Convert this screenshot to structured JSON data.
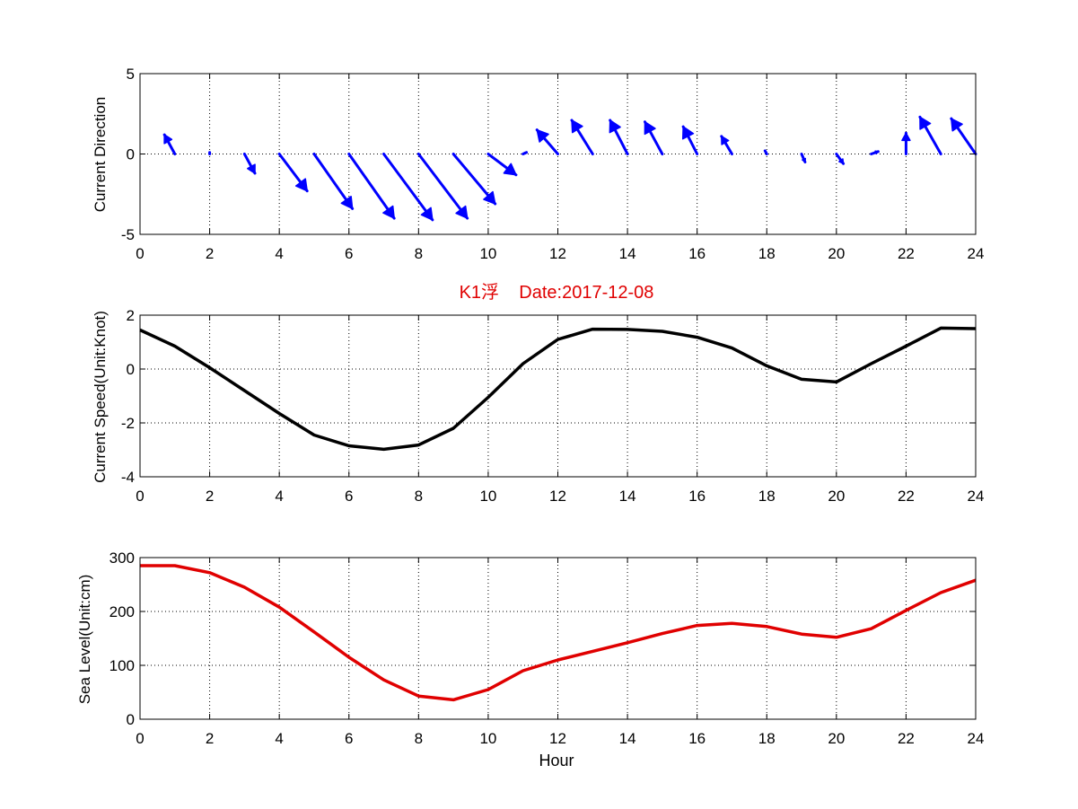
{
  "title": "K1浮    Date:2017-12-08",
  "colors": {
    "direction": "#0000ff",
    "speed": "#000000",
    "sea_level": "#e00000",
    "title": "#e00000"
  },
  "chart_data": [
    {
      "type": "quiver",
      "ylabel": "Current Direction",
      "xlim": [
        0,
        24
      ],
      "ylim": [
        -5,
        5
      ],
      "xticks": [
        "0",
        "2",
        "4",
        "6",
        "8",
        "10",
        "12",
        "14",
        "16",
        "18",
        "20",
        "22",
        "24"
      ],
      "yticks": [
        "-5",
        "0",
        "5"
      ],
      "grid": true,
      "arrows": [
        {
          "x": 1,
          "u": -0.3,
          "v": 1.2
        },
        {
          "x": 2,
          "u": 0.0,
          "v": 0.1
        },
        {
          "x": 3,
          "u": 0.3,
          "v": -1.2
        },
        {
          "x": 4,
          "u": 0.8,
          "v": -2.3
        },
        {
          "x": 5,
          "u": 1.1,
          "v": -3.4
        },
        {
          "x": 6,
          "u": 1.3,
          "v": -4.0
        },
        {
          "x": 7,
          "u": 1.4,
          "v": -4.1
        },
        {
          "x": 8,
          "u": 1.4,
          "v": -4.0
        },
        {
          "x": 9,
          "u": 1.2,
          "v": -3.1
        },
        {
          "x": 10,
          "u": 0.8,
          "v": -1.3
        },
        {
          "x": 11,
          "u": 0.1,
          "v": 0.1
        },
        {
          "x": 12,
          "u": -0.6,
          "v": 1.5
        },
        {
          "x": 13,
          "u": -0.6,
          "v": 2.1
        },
        {
          "x": 14,
          "u": -0.5,
          "v": 2.1
        },
        {
          "x": 15,
          "u": -0.5,
          "v": 2.0
        },
        {
          "x": 16,
          "u": -0.4,
          "v": 1.7
        },
        {
          "x": 17,
          "u": -0.3,
          "v": 1.1
        },
        {
          "x": 18,
          "u": -0.05,
          "v": 0.2
        },
        {
          "x": 19,
          "u": 0.1,
          "v": -0.5
        },
        {
          "x": 20,
          "u": 0.2,
          "v": -0.6
        },
        {
          "x": 21,
          "u": 0.2,
          "v": 0.15
        },
        {
          "x": 22,
          "u": 0.0,
          "v": 1.3
        },
        {
          "x": 23,
          "u": -0.6,
          "v": 2.3
        },
        {
          "x": 24,
          "u": -0.7,
          "v": 2.2
        }
      ]
    },
    {
      "type": "line",
      "ylabel": "Current Speed(Unit:Knot)",
      "xlim": [
        0,
        24
      ],
      "ylim": [
        -4,
        2
      ],
      "xticks": [
        "0",
        "2",
        "4",
        "6",
        "8",
        "10",
        "12",
        "14",
        "16",
        "18",
        "20",
        "22",
        "24"
      ],
      "yticks": [
        "-4",
        "-2",
        "0",
        "2"
      ],
      "grid": true,
      "series": [
        {
          "x": [
            0,
            1,
            2,
            3,
            4,
            5,
            6,
            7,
            8,
            9,
            10,
            11,
            12,
            13,
            14,
            15,
            16,
            17,
            18,
            19,
            20,
            21,
            22,
            23,
            24
          ],
          "values": [
            1.45,
            0.85,
            0.05,
            -0.8,
            -1.65,
            -2.45,
            -2.85,
            -2.98,
            -2.82,
            -2.2,
            -1.05,
            0.2,
            1.1,
            1.48,
            1.47,
            1.4,
            1.18,
            0.78,
            0.12,
            -0.38,
            -0.48,
            0.2,
            0.85,
            1.52,
            1.5
          ]
        }
      ]
    },
    {
      "type": "line",
      "ylabel": "Sea Level(Unit:cm)",
      "xlabel": "Hour",
      "xlim": [
        0,
        24
      ],
      "ylim": [
        0,
        300
      ],
      "xticks": [
        "0",
        "2",
        "4",
        "6",
        "8",
        "10",
        "12",
        "14",
        "16",
        "18",
        "20",
        "22",
        "24"
      ],
      "yticks": [
        "0",
        "100",
        "200",
        "300"
      ],
      "grid": true,
      "series": [
        {
          "x": [
            0,
            1,
            2,
            3,
            4,
            5,
            6,
            7,
            8,
            9,
            10,
            11,
            12,
            13,
            14,
            15,
            16,
            17,
            18,
            19,
            20,
            21,
            22,
            23,
            24
          ],
          "values": [
            285,
            285,
            272,
            245,
            208,
            162,
            115,
            73,
            43,
            36,
            55,
            90,
            110,
            126,
            142,
            159,
            174,
            178,
            172,
            158,
            152,
            168,
            202,
            235,
            258
          ]
        }
      ]
    }
  ]
}
